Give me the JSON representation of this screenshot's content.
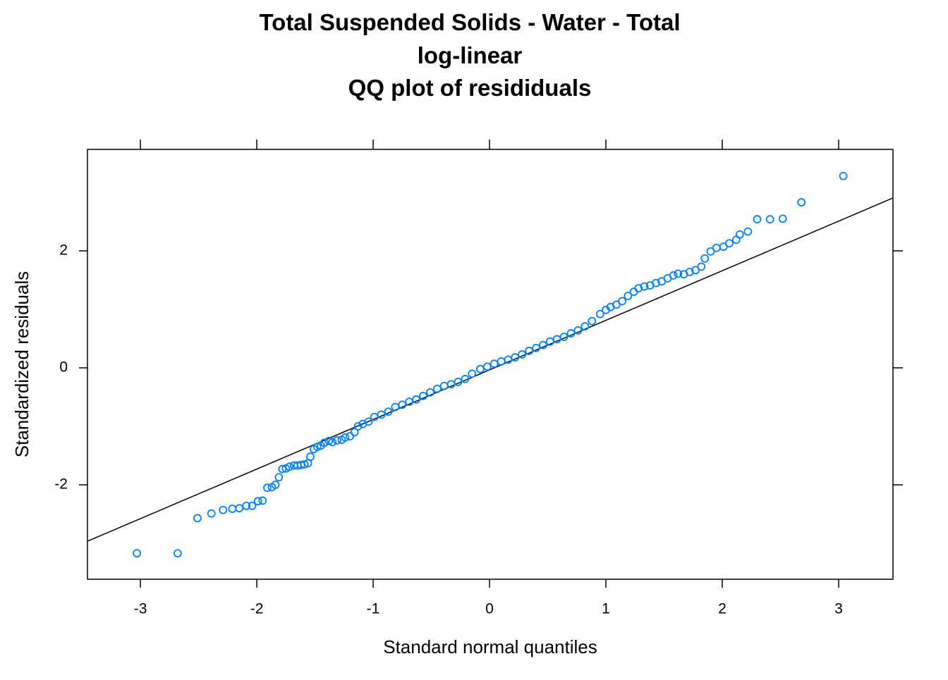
{
  "chart_data": {
    "type": "scatter",
    "title_lines": [
      "Total Suspended Solids - Water - Total",
      "log-linear",
      "QQ plot of resididuals"
    ],
    "x_label": "Standard normal quantiles",
    "y_label": "Standardized residuals",
    "xlim": [
      -3.455,
      3.467
    ],
    "ylim": [
      -3.614,
      3.735
    ],
    "xticks": [
      -3,
      -2,
      -1,
      0,
      1,
      2,
      3
    ],
    "yticks": [
      -2,
      0,
      2
    ],
    "grid": false,
    "color": "#0080ff",
    "x": [
      -3.03,
      -2.68,
      -2.51,
      -2.39,
      -2.29,
      -2.21,
      -2.15,
      -2.09,
      -2.04,
      -1.99,
      -1.95,
      -1.91,
      -1.87,
      -1.84,
      -1.81,
      -1.78,
      -1.75,
      -1.72,
      -1.68,
      -1.65,
      -1.62,
      -1.59,
      -1.56,
      -1.54,
      -1.51,
      -1.48,
      -1.45,
      -1.42,
      -1.38,
      -1.35,
      -1.31,
      -1.27,
      -1.24,
      -1.2,
      -1.16,
      -1.13,
      -1.09,
      -1.04,
      -0.99,
      -0.93,
      -0.87,
      -0.81,
      -0.75,
      -0.69,
      -0.63,
      -0.57,
      -0.51,
      -0.45,
      -0.39,
      -0.33,
      -0.27,
      -0.21,
      -0.15,
      -0.08,
      -0.02,
      0.04,
      0.1,
      0.16,
      0.22,
      0.28,
      0.34,
      0.4,
      0.46,
      0.52,
      0.58,
      0.64,
      0.7,
      0.76,
      0.82,
      0.88,
      0.95,
      1.0,
      1.04,
      1.09,
      1.14,
      1.19,
      1.24,
      1.28,
      1.33,
      1.38,
      1.43,
      1.48,
      1.53,
      1.58,
      1.62,
      1.67,
      1.72,
      1.77,
      1.82,
      1.85,
      1.9,
      1.95,
      2.01,
      2.06,
      2.12,
      2.15,
      2.22,
      2.3,
      2.41,
      2.52,
      2.68,
      3.04
    ],
    "values": [
      -3.17,
      -3.17,
      -2.57,
      -2.49,
      -2.43,
      -2.41,
      -2.4,
      -2.36,
      -2.36,
      -2.28,
      -2.27,
      -2.05,
      -2.04,
      -2.0,
      -1.87,
      -1.73,
      -1.72,
      -1.69,
      -1.67,
      -1.67,
      -1.66,
      -1.65,
      -1.63,
      -1.52,
      -1.39,
      -1.35,
      -1.33,
      -1.28,
      -1.25,
      -1.27,
      -1.24,
      -1.23,
      -1.19,
      -1.17,
      -1.1,
      -1.0,
      -0.96,
      -0.92,
      -0.84,
      -0.8,
      -0.75,
      -0.67,
      -0.63,
      -0.58,
      -0.54,
      -0.48,
      -0.42,
      -0.36,
      -0.31,
      -0.28,
      -0.24,
      -0.19,
      -0.1,
      -0.02,
      0.02,
      0.07,
      0.11,
      0.14,
      0.18,
      0.23,
      0.29,
      0.34,
      0.39,
      0.45,
      0.49,
      0.53,
      0.59,
      0.64,
      0.71,
      0.8,
      0.92,
      0.99,
      1.04,
      1.08,
      1.14,
      1.23,
      1.3,
      1.36,
      1.39,
      1.41,
      1.45,
      1.48,
      1.53,
      1.58,
      1.61,
      1.6,
      1.64,
      1.67,
      1.73,
      1.87,
      1.99,
      2.05,
      2.07,
      2.13,
      2.19,
      2.28,
      2.33,
      2.54,
      2.54,
      2.55,
      2.83,
      3.28
    ],
    "line": {
      "x": [
        -3.455,
        3.467
      ],
      "values": [
        -2.964,
        2.904
      ],
      "color": "#000000"
    }
  }
}
